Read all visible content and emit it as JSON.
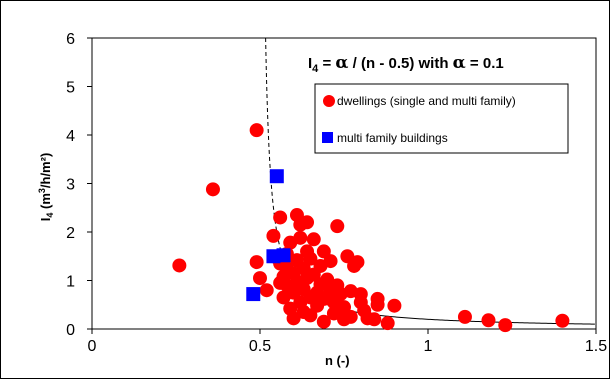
{
  "chart_data": {
    "type": "scatter",
    "xlabel": "n  (-)",
    "ylabel": {
      "base": "I",
      "sub": "4",
      "rest1": " (m",
      "sup": "3",
      "rest2": "/h/m²)"
    },
    "xlim": [
      0,
      1.5
    ],
    "ylim": [
      0,
      6
    ],
    "x_ticks": [
      0,
      0.5,
      1,
      1.5
    ],
    "x_tick_labels": [
      "0",
      "0.5",
      "1",
      "1.5"
    ],
    "y_ticks": [
      0,
      1,
      2,
      3,
      4,
      5,
      6
    ],
    "y_tick_labels": [
      "0",
      "1",
      "2",
      "3",
      "4",
      "5",
      "6"
    ],
    "grid": false,
    "formula": {
      "p1": "I",
      "sub": "4",
      "p2": " = ",
      "greek1": "α",
      "p3": " / (n - 0.5)  with  ",
      "greek2": "α",
      "p4": " = 0.1"
    },
    "curve": {
      "alpha": 0.1,
      "offset": 0.5,
      "style": "dashed-then-solid",
      "color": "#000000"
    },
    "legend": {
      "placement": "top-right-inner"
    },
    "series": [
      {
        "name": "dwellings (single and multi family)",
        "marker": "circle",
        "color": "#ff0000",
        "points": [
          [
            0.26,
            1.31
          ],
          [
            0.36,
            2.88
          ],
          [
            0.49,
            4.1
          ],
          [
            0.49,
            1.38
          ],
          [
            0.5,
            1.05
          ],
          [
            0.52,
            0.8
          ],
          [
            0.54,
            1.92
          ],
          [
            0.55,
            1.47
          ],
          [
            0.56,
            1.35
          ],
          [
            0.56,
            0.95
          ],
          [
            0.56,
            2.3
          ],
          [
            0.57,
            1.08
          ],
          [
            0.57,
            0.65
          ],
          [
            0.58,
            1.55
          ],
          [
            0.58,
            1.25
          ],
          [
            0.58,
            0.9
          ],
          [
            0.59,
            0.42
          ],
          [
            0.59,
            1.78
          ],
          [
            0.6,
            1.15
          ],
          [
            0.6,
            0.75
          ],
          [
            0.6,
            0.22
          ],
          [
            0.61,
            2.35
          ],
          [
            0.61,
            1.42
          ],
          [
            0.61,
            0.98
          ],
          [
            0.62,
            0.55
          ],
          [
            0.62,
            1.88
          ],
          [
            0.62,
            2.15
          ],
          [
            0.63,
            1.25
          ],
          [
            0.63,
            0.82
          ],
          [
            0.63,
            0.35
          ],
          [
            0.64,
            2.2
          ],
          [
            0.64,
            1.6
          ],
          [
            0.64,
            1.05
          ],
          [
            0.65,
            0.65
          ],
          [
            0.65,
            1.45
          ],
          [
            0.65,
            0.28
          ],
          [
            0.66,
            1.85
          ],
          [
            0.66,
            1.12
          ],
          [
            0.67,
            0.75
          ],
          [
            0.67,
            0.48
          ],
          [
            0.68,
            1.3
          ],
          [
            0.68,
            0.92
          ],
          [
            0.69,
            1.6
          ],
          [
            0.69,
            0.62
          ],
          [
            0.69,
            0.15
          ],
          [
            0.7,
            1.02
          ],
          [
            0.71,
            0.8
          ],
          [
            0.71,
            1.4
          ],
          [
            0.72,
            0.55
          ],
          [
            0.72,
            0.32
          ],
          [
            0.73,
            2.12
          ],
          [
            0.73,
            0.9
          ],
          [
            0.74,
            0.72
          ],
          [
            0.75,
            0.2
          ],
          [
            0.75,
            0.45
          ],
          [
            0.76,
            1.5
          ],
          [
            0.77,
            0.78
          ],
          [
            0.77,
            0.25
          ],
          [
            0.78,
            1.3
          ],
          [
            0.79,
            1.38
          ],
          [
            0.8,
            0.72
          ],
          [
            0.8,
            0.55
          ],
          [
            0.81,
            0.38
          ],
          [
            0.82,
            0.22
          ],
          [
            0.84,
            0.2
          ],
          [
            0.85,
            0.62
          ],
          [
            0.85,
            0.5
          ],
          [
            0.88,
            0.12
          ],
          [
            0.9,
            0.48
          ],
          [
            1.11,
            0.25
          ],
          [
            1.18,
            0.18
          ],
          [
            1.23,
            0.08
          ],
          [
            1.4,
            0.17
          ]
        ]
      },
      {
        "name": "multi family buildings",
        "marker": "square",
        "color": "#0000ff",
        "points": [
          [
            0.48,
            0.72
          ],
          [
            0.54,
            1.5
          ],
          [
            0.55,
            3.15
          ],
          [
            0.57,
            1.52
          ]
        ]
      }
    ]
  }
}
